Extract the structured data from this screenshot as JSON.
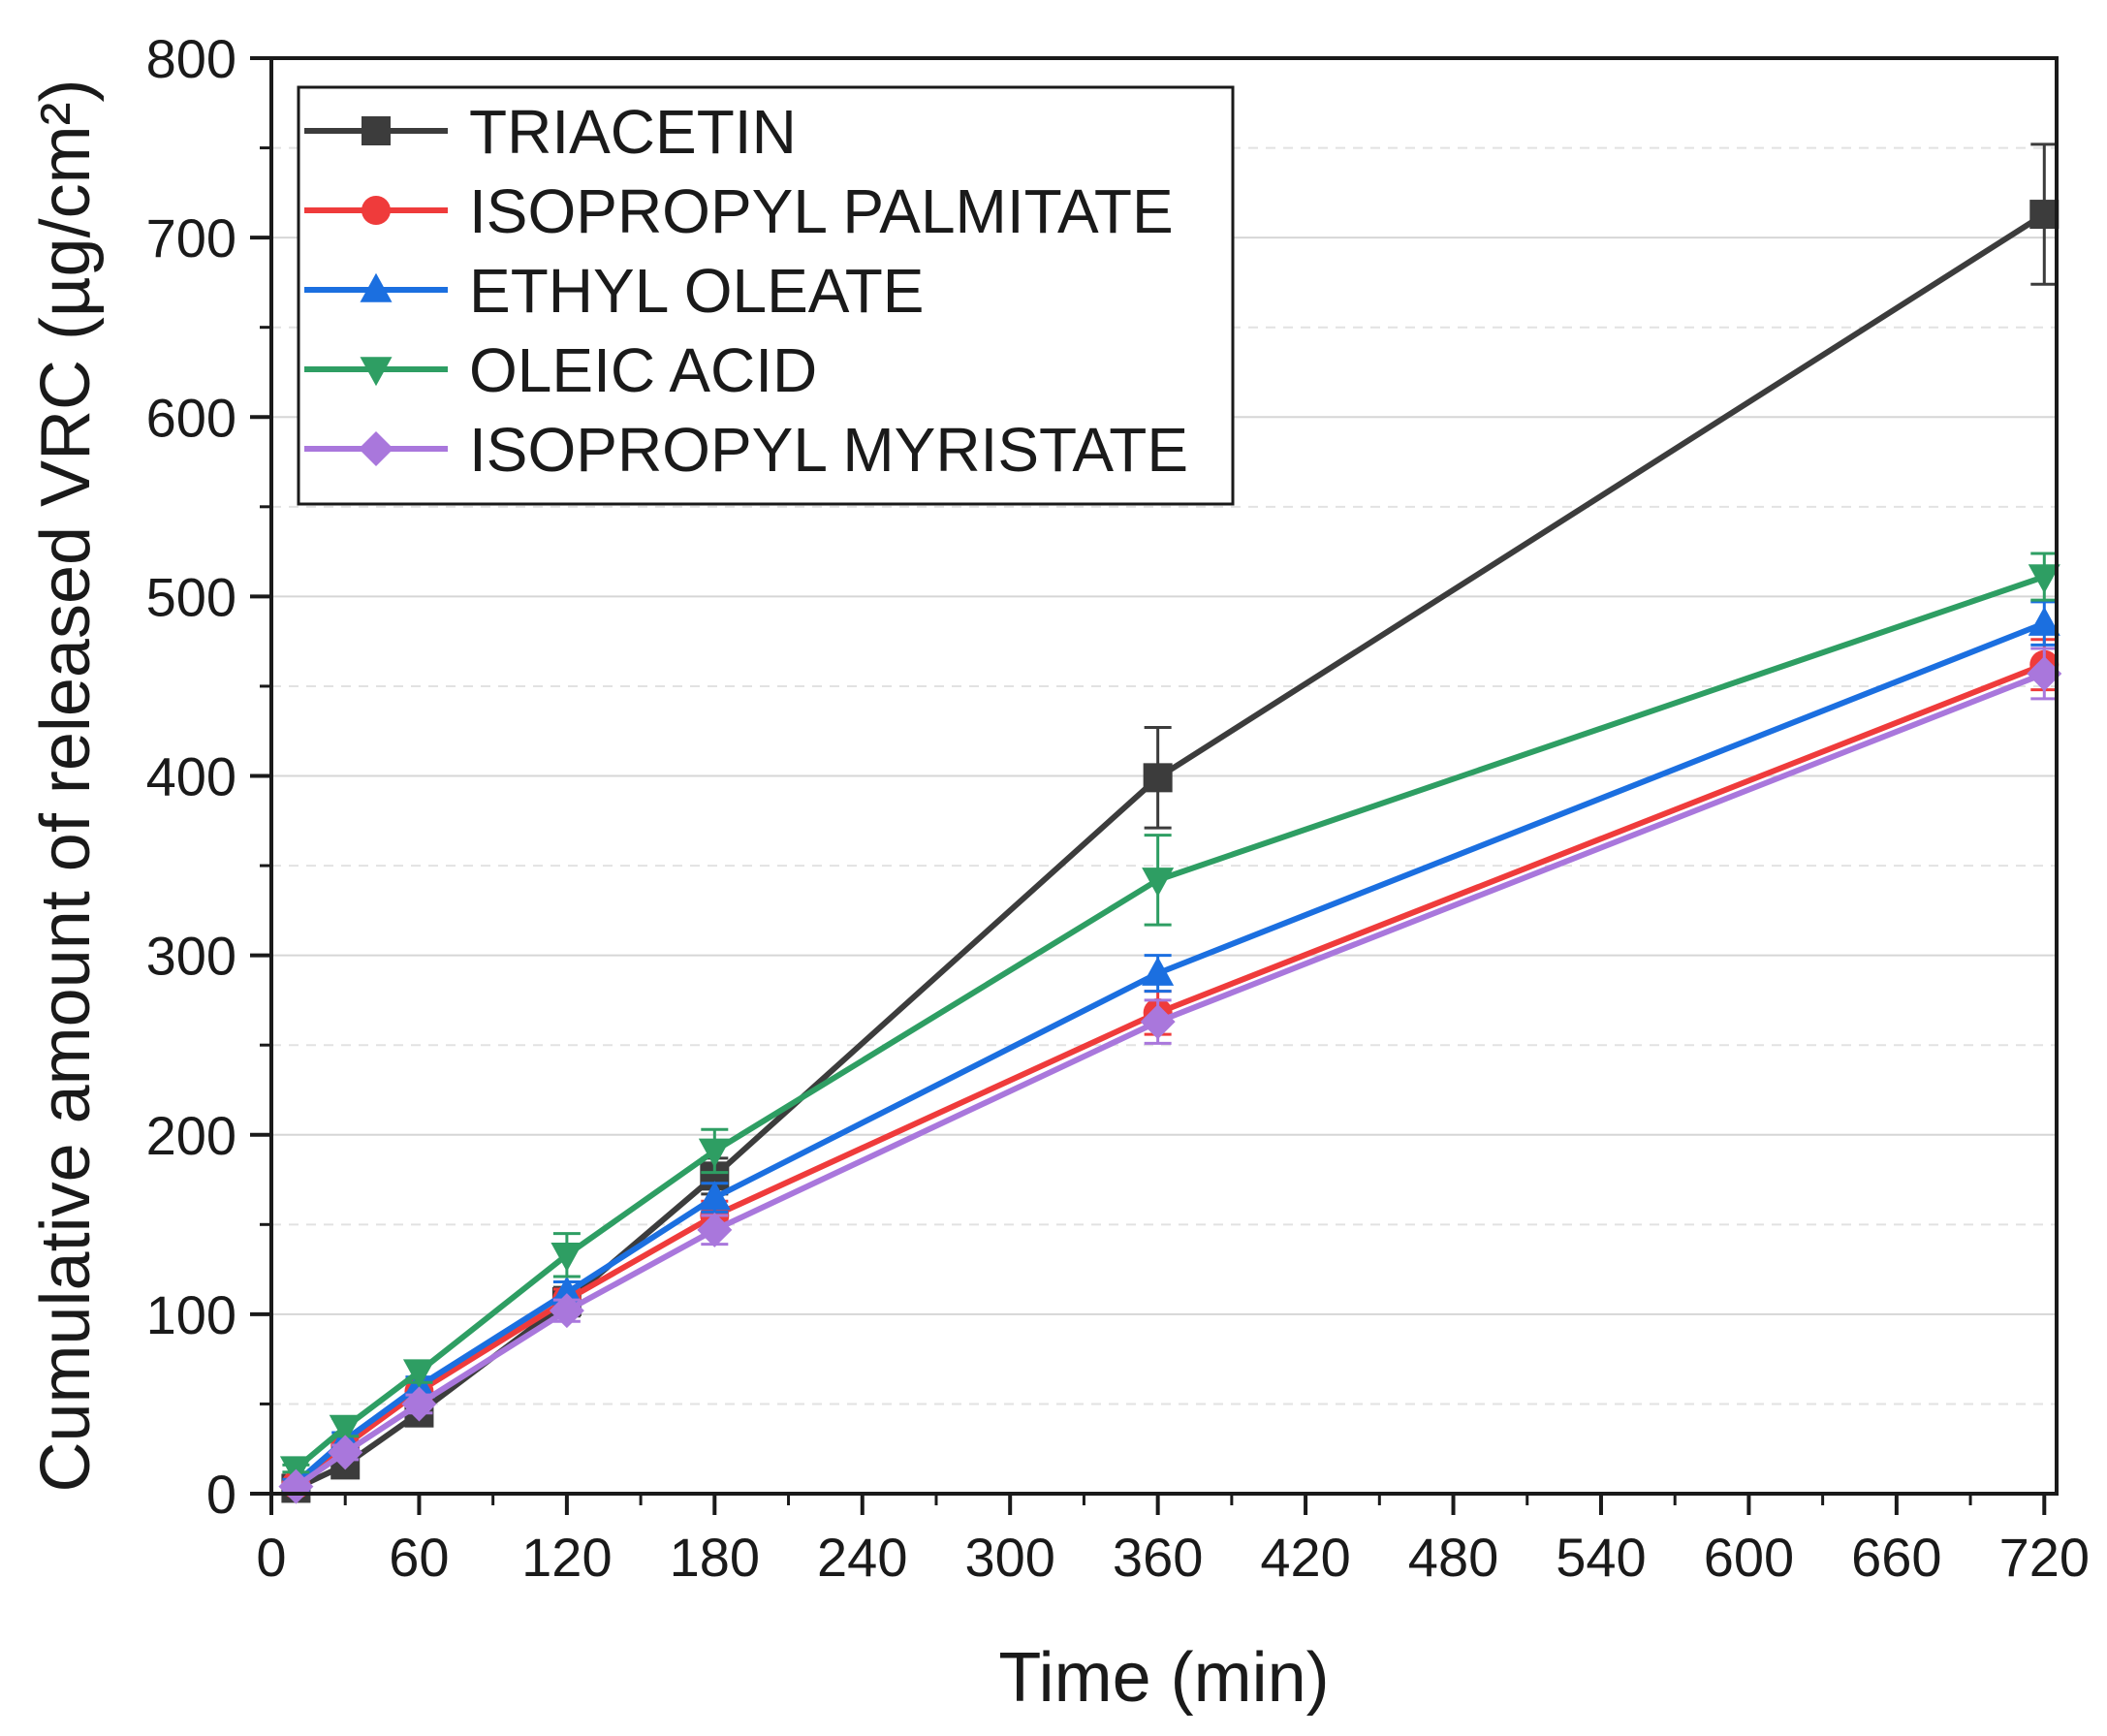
{
  "chart_data": {
    "type": "line",
    "title": "",
    "xlabel": "Time (min)",
    "ylabel": "Cumulative amount of released VRC (µg/cm²)",
    "xlim": [
      0,
      725
    ],
    "ylim": [
      0,
      800
    ],
    "x_ticks": [
      "0",
      "60",
      "120",
      "180",
      "240",
      "300",
      "360",
      "420",
      "480",
      "540",
      "600",
      "660",
      "720"
    ],
    "y_ticks": [
      "0",
      "100",
      "200",
      "300",
      "400",
      "500",
      "600",
      "700",
      "800"
    ],
    "grid": true,
    "legend_position": "top-left",
    "x": [
      10,
      30,
      60,
      120,
      180,
      360,
      720
    ],
    "series": [
      {
        "name": "TRIACETIN",
        "color": "#3c3c3c",
        "marker": "square",
        "values": [
          3,
          16,
          45,
          107,
          177,
          399,
          713
        ],
        "errors": [
          2,
          5,
          6,
          8,
          10,
          28,
          39
        ]
      },
      {
        "name": "ISOPROPYL PALMITATE",
        "color": "#ef3b3b",
        "marker": "circle",
        "values": [
          5,
          27,
          57,
          108,
          155,
          268,
          462
        ],
        "errors": [
          2,
          4,
          5,
          6,
          8,
          12,
          14
        ]
      },
      {
        "name": "ETHYL OLEATE",
        "color": "#1b6fe0",
        "marker": "triangle-up",
        "values": [
          6,
          30,
          60,
          112,
          165,
          290,
          485
        ],
        "errors": [
          2,
          4,
          5,
          6,
          8,
          10,
          12
        ]
      },
      {
        "name": "OLEIC ACID",
        "color": "#2e9e63",
        "marker": "triangle-down",
        "values": [
          14,
          37,
          68,
          133,
          191,
          342,
          511
        ],
        "errors": [
          2,
          5,
          6,
          12,
          12,
          25,
          13
        ]
      },
      {
        "name": "ISOPROPYL MYRISTATE",
        "color": "#a977dc",
        "marker": "diamond",
        "values": [
          4,
          23,
          50,
          102,
          147,
          263,
          457
        ],
        "errors": [
          2,
          4,
          5,
          6,
          8,
          12,
          14
        ]
      }
    ]
  }
}
